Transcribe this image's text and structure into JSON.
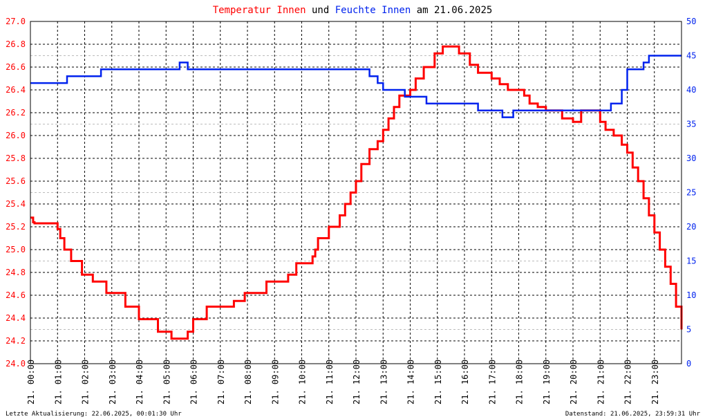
{
  "chart_data": {
    "type": "line",
    "title": {
      "part1": "Temperatur Innen",
      "part2": "und",
      "part3": "Feuchte Innen",
      "part4": "am 21.06.2025"
    },
    "colors": {
      "temperature": "#ff0000",
      "humidity": "#0022ee",
      "grid": "#000000",
      "background": "#ffffff"
    },
    "grid": true,
    "x_ticks": [
      "21. 00:00",
      "21. 01:00",
      "21. 02:00",
      "21. 03:00",
      "21. 04:00",
      "21. 05:00",
      "21. 06:00",
      "21. 07:00",
      "21. 08:00",
      "21. 09:00",
      "21. 10:00",
      "21. 11:00",
      "21. 12:00",
      "21. 13:00",
      "21. 14:00",
      "21. 15:00",
      "21. 16:00",
      "21. 17:00",
      "21. 18:00",
      "21. 19:00",
      "21. 20:00",
      "21. 21:00",
      "21. 22:00",
      "21. 23:00"
    ],
    "x_range_hours": [
      0,
      24
    ],
    "y_left": {
      "range": [
        24.0,
        27.0
      ],
      "ticks": [
        "24.0",
        "24.2",
        "24.4",
        "24.6",
        "24.8",
        "25.0",
        "25.2",
        "25.4",
        "25.6",
        "25.8",
        "26.0",
        "26.2",
        "26.4",
        "26.6",
        "26.8",
        "27.0"
      ]
    },
    "y_right": {
      "range": [
        0,
        50
      ],
      "ticks": [
        "0",
        "5",
        "10",
        "15",
        "20",
        "25",
        "30",
        "35",
        "40",
        "45",
        "50"
      ]
    },
    "series": [
      {
        "name": "Temperatur Innen",
        "axis": "left",
        "x": [
          0,
          0.1,
          0.15,
          0.9,
          1.0,
          1.1,
          1.25,
          1.5,
          1.9,
          2.3,
          2.5,
          2.8,
          3.0,
          3.5,
          3.8,
          4.0,
          4.4,
          4.7,
          5.0,
          5.2,
          5.5,
          5.8,
          6.0,
          6.3,
          6.5,
          6.8,
          7.5,
          7.9,
          8.0,
          8.5,
          8.7,
          8.8,
          9.0,
          9.5,
          9.7,
          9.8,
          10.0,
          10.4,
          10.5,
          10.6,
          11.0,
          11.4,
          11.6,
          11.8,
          12.0,
          12.2,
          12.5,
          12.8,
          13.0,
          13.2,
          13.4,
          13.6,
          14.0,
          14.2,
          14.5,
          14.9,
          15.2,
          15.5,
          15.8,
          16.0,
          16.2,
          16.5,
          17.0,
          17.3,
          17.6,
          18.0,
          18.2,
          18.4,
          18.7,
          19.0,
          19.3,
          19.6,
          20.0,
          20.3,
          20.5,
          21.0,
          21.2,
          21.5,
          21.8,
          22.0,
          22.2,
          22.4,
          22.6,
          22.8,
          23.0,
          23.2,
          23.4,
          23.6,
          23.8,
          24.0
        ],
        "values": [
          25.28,
          25.24,
          25.23,
          25.23,
          25.18,
          25.1,
          25.0,
          24.9,
          24.78,
          24.72,
          24.72,
          24.62,
          24.62,
          24.5,
          24.5,
          24.39,
          24.39,
          24.28,
          24.28,
          24.22,
          24.22,
          24.28,
          24.39,
          24.39,
          24.5,
          24.5,
          24.55,
          24.62,
          24.62,
          24.62,
          24.72,
          24.72,
          24.72,
          24.78,
          24.78,
          24.88,
          24.88,
          24.94,
          25.0,
          25.1,
          25.2,
          25.3,
          25.4,
          25.5,
          25.6,
          25.75,
          25.88,
          25.95,
          26.05,
          26.15,
          26.25,
          26.35,
          26.4,
          26.5,
          26.6,
          26.72,
          26.78,
          26.78,
          26.72,
          26.72,
          26.62,
          26.55,
          26.5,
          26.45,
          26.4,
          26.4,
          26.35,
          26.28,
          26.25,
          26.22,
          26.22,
          26.15,
          26.12,
          26.22,
          26.22,
          26.12,
          26.05,
          26.0,
          25.92,
          25.85,
          25.72,
          25.6,
          25.45,
          25.3,
          25.15,
          25.0,
          24.85,
          24.7,
          24.5,
          24.3
        ]
      },
      {
        "name": "Feuchte Innen",
        "axis": "right",
        "x": [
          0,
          1.3,
          1.35,
          2.5,
          2.6,
          5.4,
          5.5,
          5.8,
          5.9,
          12.4,
          12.5,
          12.8,
          13.0,
          13.4,
          13.8,
          14.0,
          14.6,
          14.8,
          16.0,
          16.5,
          17.3,
          17.4,
          17.6,
          17.8,
          18.0,
          19.0,
          20.0,
          21.0,
          21.3,
          21.4,
          21.6,
          21.8,
          22.0,
          22.5,
          22.6,
          22.8,
          23.0,
          23.5,
          24.0
        ],
        "values": [
          41,
          41,
          42,
          42,
          43,
          43,
          44,
          43,
          43,
          43,
          42,
          41,
          40,
          40,
          39,
          39,
          38,
          38,
          38,
          37,
          37,
          36,
          36,
          37,
          37,
          37,
          37,
          37,
          37,
          38,
          38,
          40,
          43,
          43,
          44,
          45,
          45,
          45,
          45
        ]
      }
    ],
    "footer": {
      "left": "Letzte Aktualisierung: 22.06.2025, 00:01:30 Uhr",
      "right": "Datenstand: 21.06.2025, 23:59:31 Uhr"
    }
  }
}
